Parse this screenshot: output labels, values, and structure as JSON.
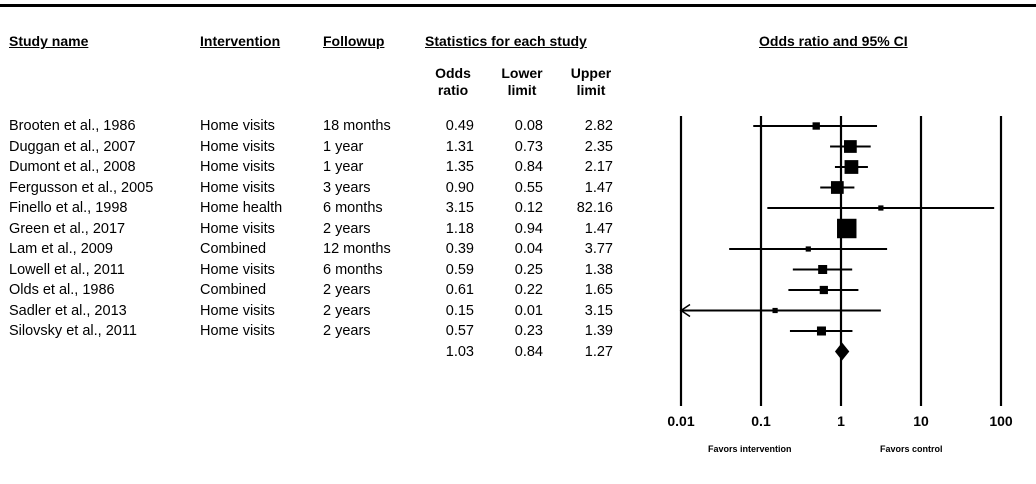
{
  "headers": {
    "study": "Study name",
    "intervention": "Intervention",
    "followup": "Followup",
    "stats": "Statistics for each study",
    "or_ci": "Odds ratio and 95% CI"
  },
  "subheaders": {
    "or_line1": "Odds",
    "or_line2": "ratio",
    "lower_line1": "Lower",
    "lower_line2": "limit",
    "upper_line1": "Upper",
    "upper_line2": "limit"
  },
  "rows": [
    {
      "study": "Brooten et al., 1986",
      "intervention": "Home visits",
      "followup": "18 months",
      "or": "0.49",
      "lower": "0.08",
      "upper": "2.82"
    },
    {
      "study": "Duggan et al., 2007",
      "intervention": "Home visits",
      "followup": "1 year",
      "or": "1.31",
      "lower": "0.73",
      "upper": "2.35"
    },
    {
      "study": "Dumont et al., 2008",
      "intervention": "Home visits",
      "followup": "1 year",
      "or": "1.35",
      "lower": "0.84",
      "upper": "2.17"
    },
    {
      "study": "Fergusson et al., 2005",
      "intervention": "Home visits",
      "followup": "3 years",
      "or": "0.90",
      "lower": "0.55",
      "upper": "1.47"
    },
    {
      "study": "Finello et al., 1998",
      "intervention": "Home health",
      "followup": "6 months",
      "or": "3.15",
      "lower": "0.12",
      "upper": "82.16"
    },
    {
      "study": "Green et al., 2017",
      "intervention": "Home visits",
      "followup": "2 years",
      "or": "1.18",
      "lower": "0.94",
      "upper": "1.47"
    },
    {
      "study": "Lam et al., 2009",
      "intervention": "Combined",
      "followup": "12 months",
      "or": "0.39",
      "lower": "0.04",
      "upper": "3.77"
    },
    {
      "study": "Lowell et al., 2011",
      "intervention": "Home visits",
      "followup": "6 months",
      "or": "0.59",
      "lower": "0.25",
      "upper": "1.38"
    },
    {
      "study": "Olds et al., 1986",
      "intervention": "Combined",
      "followup": "2 years",
      "or": "0.61",
      "lower": "0.22",
      "upper": "1.65"
    },
    {
      "study": "Sadler et al., 2013",
      "intervention": "Home visits",
      "followup": "2 years",
      "or": "0.15",
      "lower": "0.01",
      "upper": "3.15"
    },
    {
      "study": "Silovsky et al., 2011",
      "intervention": "Home visits",
      "followup": "2 years",
      "or": "0.57",
      "lower": "0.23",
      "upper": "1.39"
    }
  ],
  "summary": {
    "or": "1.03",
    "lower": "0.84",
    "upper": "1.27"
  },
  "favors": {
    "left": "Favors intervention",
    "right": "Favors control"
  },
  "chart_data": {
    "type": "forest",
    "title": "Odds ratio and 95% CI",
    "x_scale": "log",
    "xlim": [
      0.01,
      100
    ],
    "x_ticks": [
      "0.01",
      "0.1",
      "1",
      "10",
      "100"
    ],
    "reference_line": 1,
    "studies": [
      {
        "name": "Brooten et al., 1986",
        "or": 0.49,
        "lower": 0.08,
        "upper": 2.82,
        "weight": 2
      },
      {
        "name": "Duggan et al., 2007",
        "or": 1.31,
        "lower": 0.73,
        "upper": 2.35,
        "weight": 6
      },
      {
        "name": "Dumont et al., 2008",
        "or": 1.35,
        "lower": 0.84,
        "upper": 2.17,
        "weight": 7
      },
      {
        "name": "Fergusson et al., 2005",
        "or": 0.9,
        "lower": 0.55,
        "upper": 1.47,
        "weight": 6
      },
      {
        "name": "Finello et al., 1998",
        "or": 3.15,
        "lower": 0.12,
        "upper": 82.16,
        "weight": 1
      },
      {
        "name": "Green et al., 2017",
        "or": 1.18,
        "lower": 0.94,
        "upper": 1.47,
        "weight": 14
      },
      {
        "name": "Lam et al., 2009",
        "or": 0.39,
        "lower": 0.04,
        "upper": 3.77,
        "weight": 1
      },
      {
        "name": "Lowell et al., 2011",
        "or": 0.59,
        "lower": 0.25,
        "upper": 1.38,
        "weight": 3
      },
      {
        "name": "Olds et al., 1986",
        "or": 0.61,
        "lower": 0.22,
        "upper": 1.65,
        "weight": 2.5
      },
      {
        "name": "Sadler et al., 2013",
        "or": 0.15,
        "lower": 0.01,
        "upper": 3.15,
        "weight": 1
      },
      {
        "name": "Silovsky et al., 2011",
        "or": 0.57,
        "lower": 0.23,
        "upper": 1.39,
        "weight": 3
      }
    ],
    "summary": {
      "or": 1.03,
      "lower": 0.84,
      "upper": 1.27
    }
  }
}
